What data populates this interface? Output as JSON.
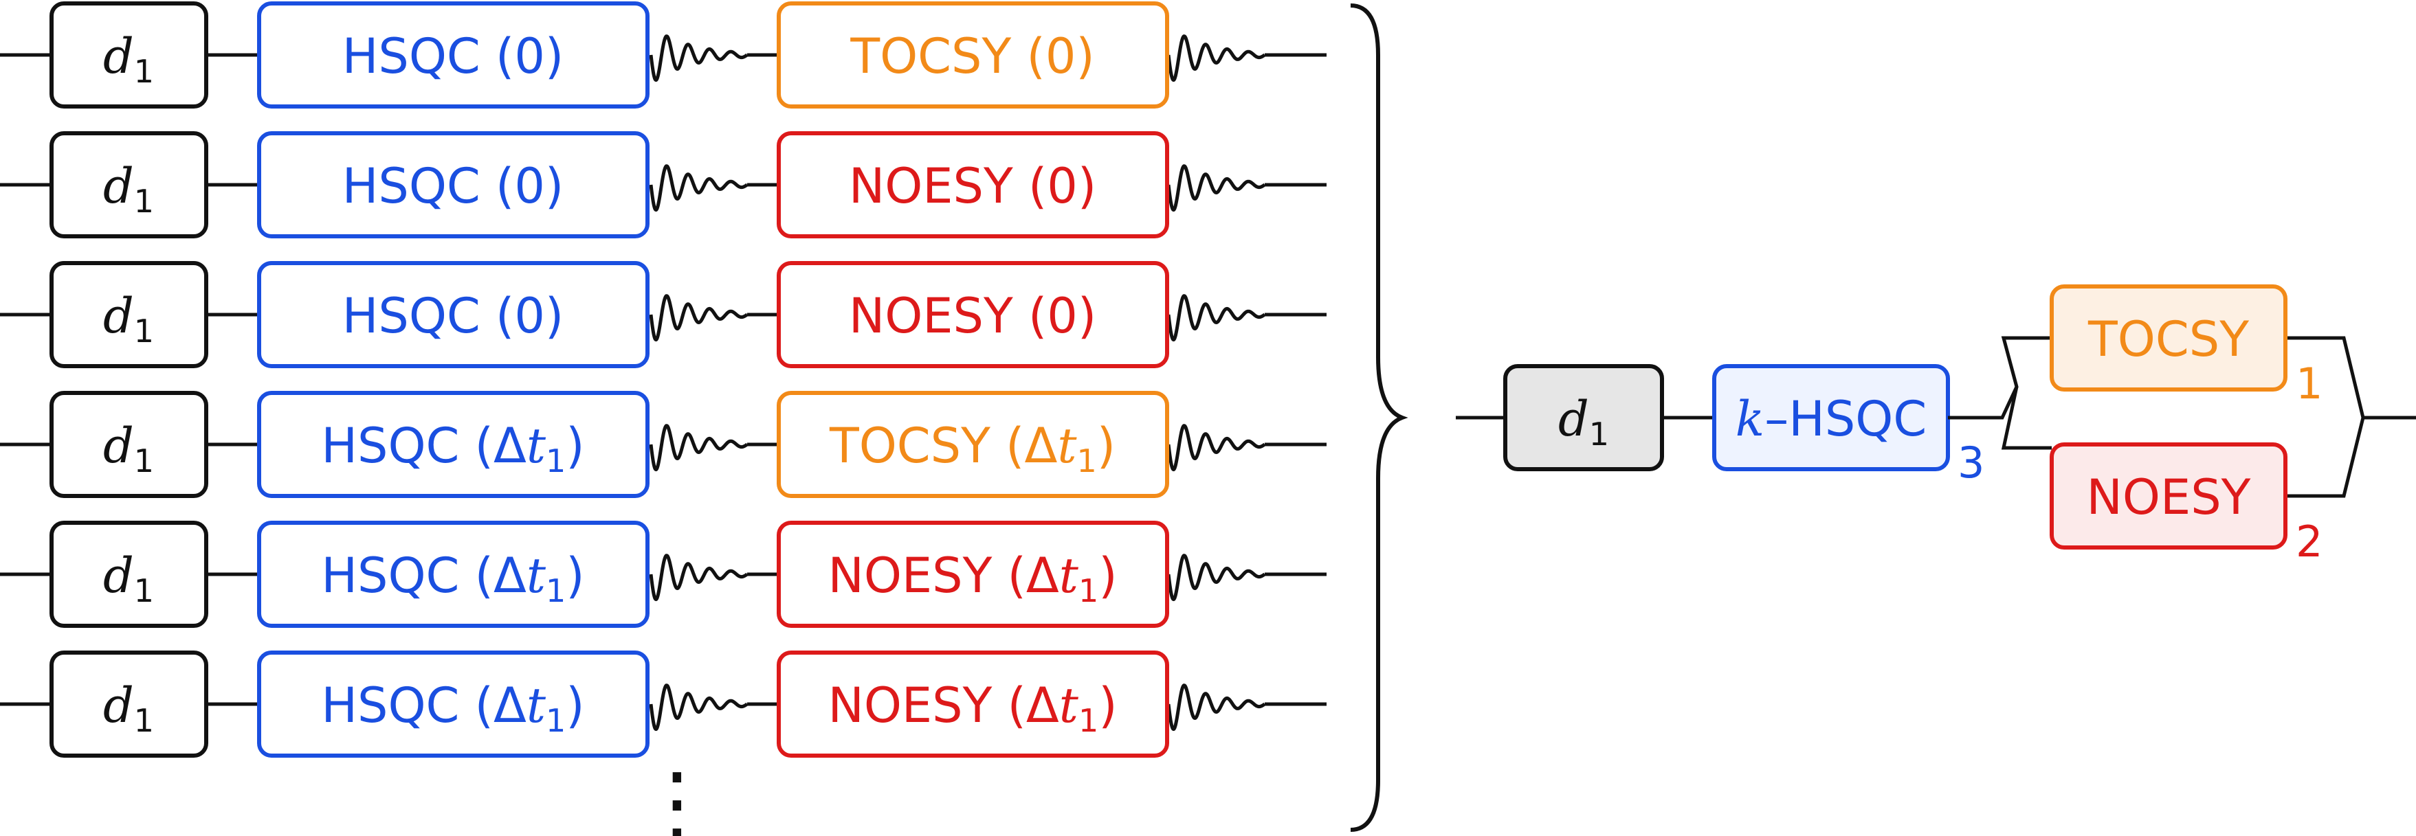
{
  "colors": {
    "black": "#111111",
    "hsqc": "#1a4fe0",
    "tocsy": "#f28a18",
    "noesy": "#dd1a1a",
    "d1_fill": "#e6e6e6",
    "hsqc_fill": "#eef3ff",
    "tocsy_fill": "#fdf0e3",
    "noesy_fill": "#fceaea"
  },
  "delay": {
    "symbol": "d",
    "subscript": "1"
  },
  "rows": [
    {
      "hsqc": {
        "name": "HSQC",
        "arg": "0"
      },
      "mix": {
        "kind": "tocsy",
        "name": "TOCSY",
        "arg": "0"
      }
    },
    {
      "hsqc": {
        "name": "HSQC",
        "arg": "0"
      },
      "mix": {
        "kind": "noesy",
        "name": "NOESY",
        "arg": "0"
      }
    },
    {
      "hsqc": {
        "name": "HSQC",
        "arg": "0"
      },
      "mix": {
        "kind": "noesy",
        "name": "NOESY",
        "arg": "0"
      }
    },
    {
      "hsqc": {
        "name": "HSQC",
        "arg": "Δt1"
      },
      "mix": {
        "kind": "tocsy",
        "name": "TOCSY",
        "arg": "Δt1"
      }
    },
    {
      "hsqc": {
        "name": "HSQC",
        "arg": "Δt1"
      },
      "mix": {
        "kind": "noesy",
        "name": "NOESY",
        "arg": "Δt1"
      }
    },
    {
      "hsqc": {
        "name": "HSQC",
        "arg": "Δt1"
      },
      "mix": {
        "kind": "noesy",
        "name": "NOESY",
        "arg": "Δt1"
      }
    }
  ],
  "delta": {
    "symbol": "Δ",
    "var": "t",
    "sub": "1"
  },
  "continuation": "⋮",
  "summary": {
    "delay": {
      "symbol": "d",
      "subscript": "1"
    },
    "khsqc": {
      "prefix": "k",
      "dash": "–",
      "name": "HSQC",
      "repeat": "3"
    },
    "tocsy": {
      "name": "TOCSY",
      "repeat": "1"
    },
    "noesy": {
      "name": "NOESY",
      "repeat": "2"
    }
  }
}
